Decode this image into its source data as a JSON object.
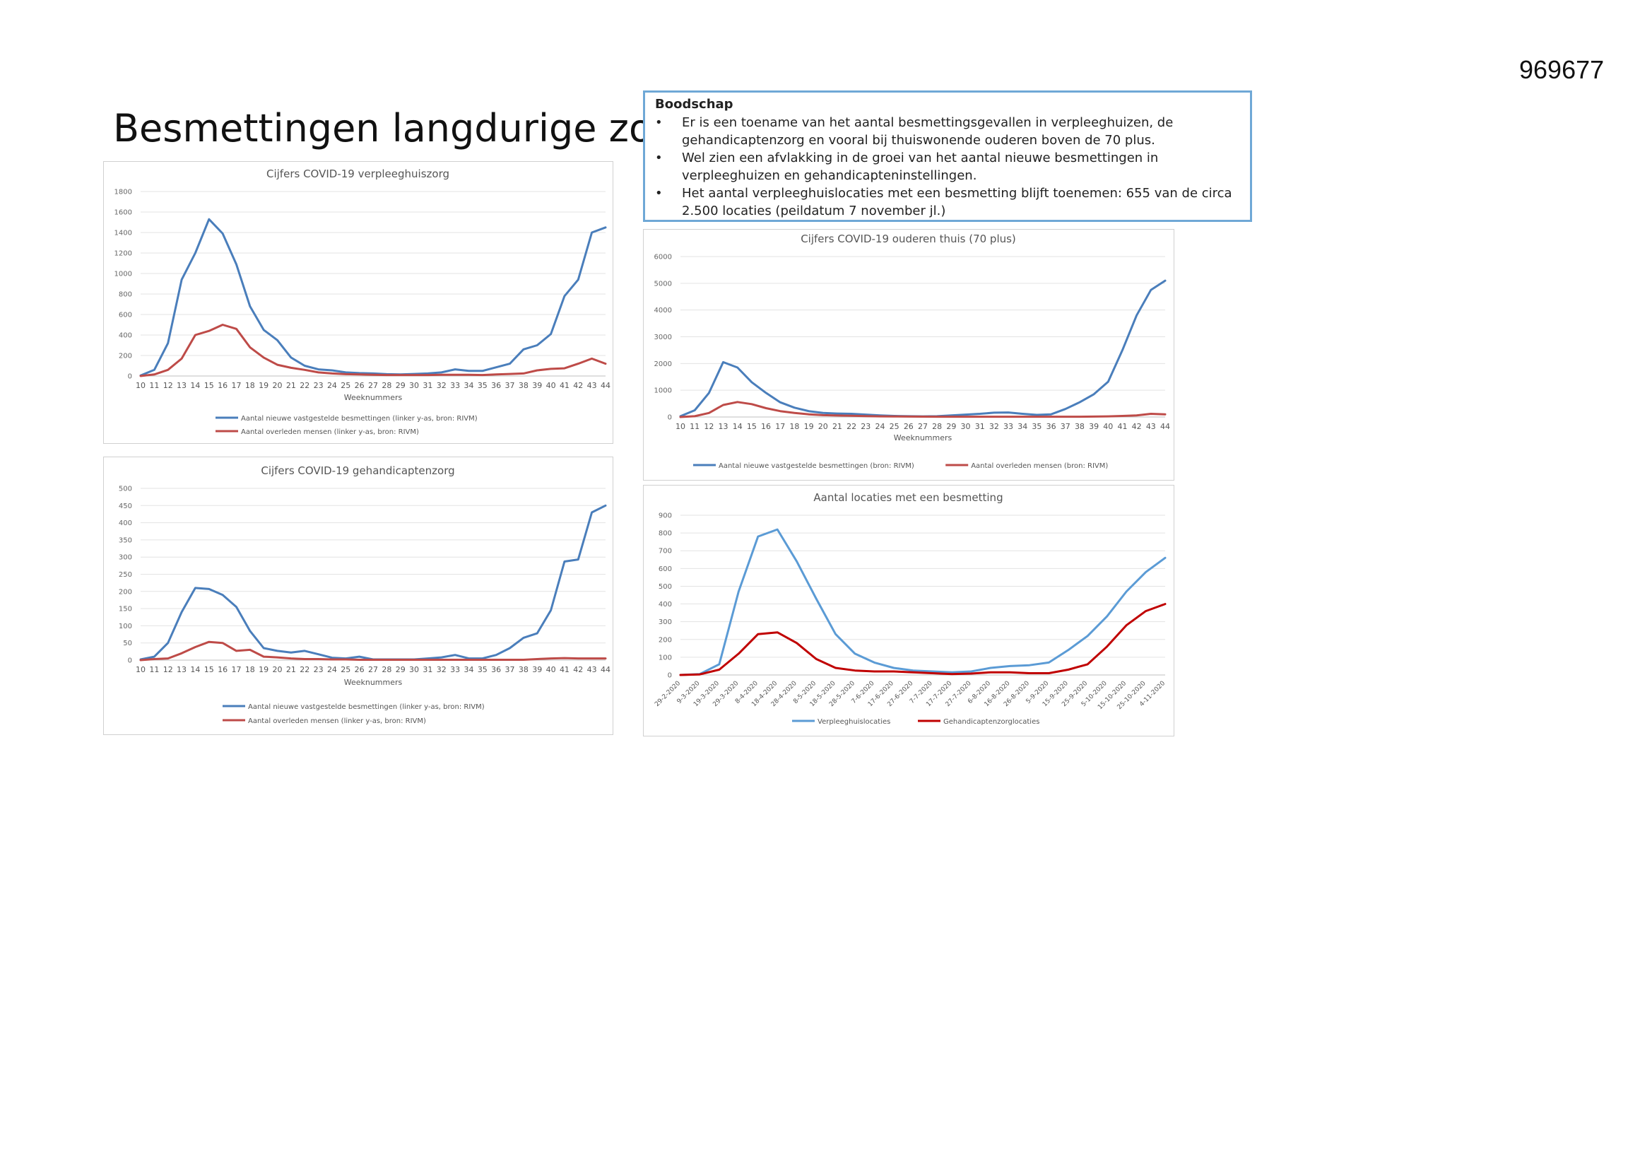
{
  "document_number": "969677",
  "page_title": "Besmettingen langdurige zorg",
  "message": {
    "heading": "Boodschap",
    "bullet_glyph": "•",
    "items": [
      "Er is een toename van het aantal besmettingsgevallen in verpleeghuizen, de gehandicaptenzorg en vooral bij thuiswonende ouderen boven de 70 plus.",
      "Wel zien een afvlakking in de groei van het aantal nieuwe besmettingen in verpleeghuizen en gehandicapteninstellingen.",
      "Het aantal verpleeghuislocaties met een besmetting blijft toenemen: 655 van de circa 2.500 locaties  (peildatum 7 november jl.)"
    ]
  },
  "chart_data": [
    {
      "id": "verpleeghuiszorg",
      "type": "line",
      "title": "Cijfers COVID-19 verpleeghuiszorg",
      "xlabel": "Weeknummers",
      "ylabel": "",
      "ylim": [
        0,
        1800
      ],
      "yticks": [
        0,
        200,
        400,
        600,
        800,
        1000,
        1200,
        1400,
        1600,
        1800
      ],
      "categories": [
        "10",
        "11",
        "12",
        "13",
        "14",
        "15",
        "16",
        "17",
        "18",
        "19",
        "20",
        "21",
        "22",
        "23",
        "24",
        "25",
        "26",
        "27",
        "28",
        "29",
        "30",
        "31",
        "32",
        "33",
        "34",
        "35",
        "36",
        "37",
        "38",
        "39",
        "40",
        "41",
        "42",
        "43",
        "44"
      ],
      "grid": true,
      "legend_position": "bottom",
      "series": [
        {
          "name": "Aantal nieuwe vastgestelde besmettingen  (linker y-as, bron: RIVM)",
          "color": "#4a7ebb",
          "values": [
            5,
            60,
            320,
            940,
            1200,
            1530,
            1390,
            1090,
            680,
            450,
            350,
            180,
            100,
            65,
            55,
            35,
            28,
            25,
            18,
            15,
            20,
            25,
            35,
            65,
            50,
            50,
            85,
            120,
            260,
            300,
            410,
            780,
            940,
            1400,
            1450
          ]
        },
        {
          "name": "Aantal overleden mensen  (linker y-as, bron: RIVM)",
          "color": "#be4b48",
          "values": [
            0,
            15,
            60,
            170,
            400,
            440,
            500,
            460,
            280,
            180,
            110,
            80,
            60,
            35,
            25,
            18,
            15,
            12,
            10,
            10,
            10,
            10,
            12,
            12,
            12,
            10,
            15,
            20,
            25,
            55,
            70,
            75,
            120,
            170,
            120
          ]
        }
      ]
    },
    {
      "id": "gehandicaptenzorg",
      "type": "line",
      "title": "Cijfers COVID-19 gehandicaptenzorg",
      "xlabel": "Weeknummers",
      "ylabel": "",
      "ylim": [
        0,
        500
      ],
      "yticks": [
        0,
        50,
        100,
        150,
        200,
        250,
        300,
        350,
        400,
        450,
        500
      ],
      "categories": [
        "10",
        "11",
        "12",
        "13",
        "14",
        "15",
        "16",
        "17",
        "18",
        "19",
        "20",
        "21",
        "22",
        "23",
        "24",
        "25",
        "26",
        "27",
        "28",
        "29",
        "30",
        "31",
        "32",
        "33",
        "34",
        "35",
        "36",
        "37",
        "38",
        "39",
        "40",
        "41",
        "42",
        "43",
        "44"
      ],
      "grid": true,
      "legend_position": "bottom",
      "series": [
        {
          "name": "Aantal nieuwe vastgestelde besmettingen  (linker y-as, bron: RIVM)",
          "color": "#4a7ebb",
          "values": [
            2,
            10,
            50,
            140,
            210,
            207,
            190,
            155,
            85,
            35,
            27,
            22,
            27,
            17,
            7,
            5,
            10,
            2,
            2,
            2,
            2,
            5,
            8,
            15,
            5,
            5,
            15,
            35,
            65,
            78,
            145,
            287,
            293,
            430,
            450
          ]
        },
        {
          "name": "Aantal overleden mensen  (linker y-as, bron: RIVM)",
          "color": "#be4b48",
          "values": [
            0,
            3,
            5,
            20,
            38,
            53,
            50,
            27,
            30,
            10,
            8,
            5,
            3,
            3,
            2,
            2,
            1,
            1,
            1,
            1,
            1,
            1,
            1,
            1,
            1,
            1,
            1,
            1,
            1,
            3,
            5,
            6,
            5,
            5,
            5
          ]
        }
      ]
    },
    {
      "id": "ouderen-thuis",
      "type": "line",
      "title": "Cijfers COVID-19 ouderen thuis (70 plus)",
      "xlabel": "Weeknummers",
      "ylabel": "",
      "ylim": [
        0,
        6000
      ],
      "yticks": [
        0,
        1000,
        2000,
        3000,
        4000,
        5000,
        6000
      ],
      "categories": [
        "10",
        "11",
        "12",
        "13",
        "14",
        "15",
        "16",
        "17",
        "18",
        "19",
        "20",
        "21",
        "22",
        "23",
        "24",
        "25",
        "26",
        "27",
        "28",
        "29",
        "30",
        "31",
        "32",
        "33",
        "34",
        "35",
        "36",
        "37",
        "38",
        "39",
        "40",
        "41",
        "42",
        "43",
        "44"
      ],
      "grid": true,
      "legend_position": "bottom",
      "series": [
        {
          "name": "Aantal nieuwe vastgestelde besmettingen (bron: RIVM)",
          "color": "#4a7ebb",
          "values": [
            30,
            250,
            900,
            2050,
            1850,
            1300,
            900,
            550,
            350,
            220,
            150,
            130,
            120,
            90,
            60,
            40,
            30,
            25,
            30,
            60,
            90,
            120,
            160,
            170,
            120,
            80,
            100,
            300,
            550,
            850,
            1320,
            2500,
            3800,
            4750,
            5100
          ]
        },
        {
          "name": "Aantal overleden mensen (bron: RIVM)",
          "color": "#be4b48",
          "values": [
            0,
            30,
            150,
            450,
            560,
            480,
            330,
            220,
            150,
            100,
            70,
            55,
            45,
            35,
            25,
            20,
            15,
            12,
            10,
            10,
            10,
            10,
            10,
            10,
            10,
            10,
            10,
            10,
            10,
            15,
            25,
            40,
            60,
            120,
            100
          ]
        }
      ]
    },
    {
      "id": "locaties",
      "type": "line",
      "title": "Aantal locaties met een besmetting",
      "xlabel": "",
      "ylabel": "",
      "ylim": [
        0,
        900
      ],
      "yticks": [
        0,
        100,
        200,
        300,
        400,
        500,
        600,
        700,
        800,
        900
      ],
      "categories": [
        "29-2-2020",
        "9-3-2020",
        "19-3-2020",
        "29-3-2020",
        "8-4-2020",
        "18-4-2020",
        "28-4-2020",
        "8-5-2020",
        "18-5-2020",
        "28-5-2020",
        "7-6-2020",
        "17-6-2020",
        "27-6-2020",
        "7-7-2020",
        "17-7-2020",
        "27-7-2020",
        "6-8-2020",
        "16-8-2020",
        "26-8-2020",
        "5-9-2020",
        "15-9-2020",
        "25-9-2020",
        "5-10-2020",
        "15-10-2020",
        "25-10-2020",
        "4-11-2020"
      ],
      "grid": true,
      "legend_position": "bottom",
      "series": [
        {
          "name": "Verpleeghuislocaties",
          "color": "#5b9bd5",
          "values": [
            0,
            5,
            60,
            470,
            780,
            820,
            640,
            430,
            230,
            120,
            70,
            40,
            25,
            20,
            15,
            20,
            40,
            50,
            55,
            70,
            140,
            220,
            330,
            470,
            580,
            660
          ]
        },
        {
          "name": "Gehandicaptenzorglocaties",
          "color": "#c00000",
          "values": [
            0,
            3,
            30,
            120,
            230,
            240,
            180,
            90,
            40,
            25,
            20,
            20,
            15,
            10,
            5,
            8,
            15,
            15,
            10,
            10,
            30,
            60,
            160,
            280,
            360,
            400
          ]
        }
      ]
    }
  ]
}
